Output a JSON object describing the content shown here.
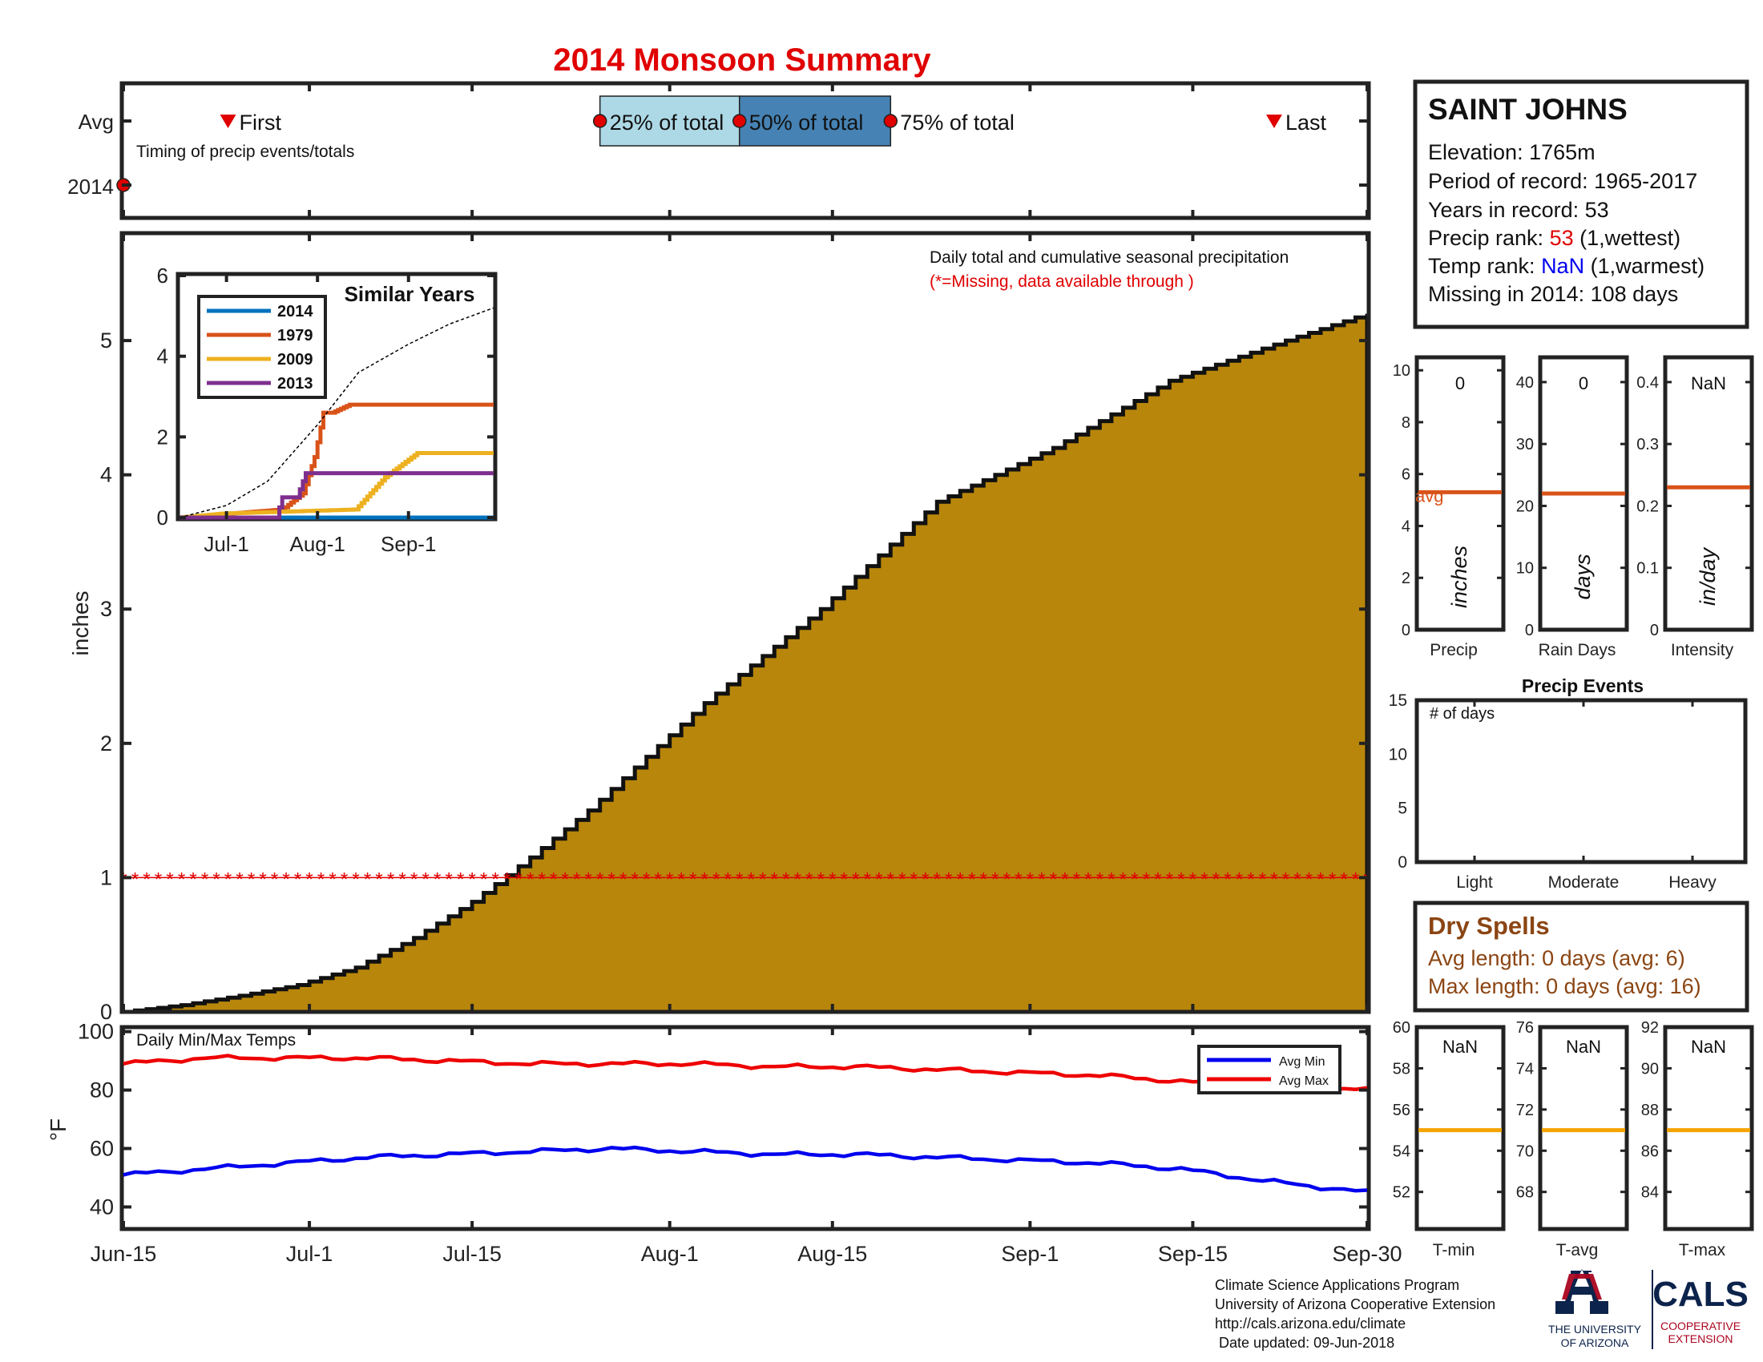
{
  "title": "2014 Monsoon Summary",
  "timing": {
    "row_labels": [
      "Avg",
      "2014"
    ],
    "caption": "Timing of precip events/totals",
    "first_label": "First",
    "last_label": "Last",
    "p25_label": "25% of total",
    "p50_label": "50% of total",
    "p75_label": "75% of total",
    "first_date": "2014-06-24",
    "p25_date": "2014-07-26",
    "p50_date": "2014-08-07",
    "p75_date": "2014-08-20",
    "last_date": "2014-09-22",
    "year_marker_date": "2014-06-15",
    "colors": {
      "q1_box": "#add8e6",
      "q2_box": "#4682b4",
      "dot": "#e00000",
      "tri": "#e00000"
    }
  },
  "main": {
    "annotation": "Daily total and cumulative seasonal precipitation",
    "missing_note": "(*=Missing, data available through )",
    "ylabel": "inches",
    "missing_marker_value": 1,
    "fill_color": "#b8860b"
  },
  "similar": {
    "title": "Similar Years",
    "x_ticks": [
      "Jul-1",
      "Aug-1",
      "Sep-1"
    ]
  },
  "temps": {
    "label": "Daily Min/Max Temps",
    "ylabel": "°F",
    "legend_min": "Avg Min",
    "legend_max": "Avg Max"
  },
  "x_ticks": [
    "Jun-15",
    "Jul-1",
    "Jul-15",
    "Aug-1",
    "Aug-15",
    "Sep-1",
    "Sep-15",
    "Sep-30"
  ],
  "station": {
    "name": "SAINT JOHNS",
    "elevation": "Elevation: 1765m",
    "period": "Period of record: 1965-2017",
    "years": "Years in record: 53",
    "precip_rank_prefix": "Precip rank: ",
    "precip_rank_value": "53",
    "precip_rank_suffix": " (1,wettest)",
    "temp_rank_prefix": "Temp rank: ",
    "temp_rank_value": "NaN",
    "temp_rank_suffix": " (1,warmest)",
    "missing": "Missing in 2014: 108 days"
  },
  "mini_bars": [
    {
      "value_label": "0",
      "unit": "inches",
      "xlabel": "Precip",
      "avg_label": "avg",
      "ticks": [
        "0",
        "2",
        "4",
        "6",
        "8",
        "10"
      ]
    },
    {
      "value_label": "0",
      "unit": "days",
      "xlabel": "Rain Days",
      "ticks": [
        "0",
        "10",
        "20",
        "30",
        "40"
      ]
    },
    {
      "value_label": "NaN",
      "unit": "in/day",
      "xlabel": "Intensity",
      "ticks": [
        "0",
        "0.1",
        "0.2",
        "0.3",
        "0.4"
      ]
    }
  ],
  "events": {
    "title": "Precip Events",
    "label": "# of days",
    "categories": [
      "Light",
      "Moderate",
      "Heavy"
    ],
    "ticks": [
      "0",
      "5",
      "10",
      "15"
    ]
  },
  "dry_spells": {
    "title": "Dry Spells",
    "avg_length": "Avg length: 0 days (avg: 6)",
    "max_length": "Max length: 0 days (avg: 16)"
  },
  "mini_temps": [
    {
      "value_label": "NaN",
      "xlabel": "T-min",
      "ticks": [
        "52",
        "54",
        "56",
        "58",
        "60"
      ]
    },
    {
      "value_label": "NaN",
      "xlabel": "T-avg",
      "ticks": [
        "68",
        "70",
        "72",
        "74",
        "76"
      ]
    },
    {
      "value_label": "NaN",
      "xlabel": "T-max",
      "ticks": [
        "84",
        "86",
        "88",
        "90",
        "92"
      ]
    }
  ],
  "footer": {
    "line1": "Climate Science Applications Program",
    "line2": "University of Arizona Cooperative Extension",
    "line3": "http://cals.arizona.edu/climate",
    "line4": " Date updated: 09-Jun-2018",
    "ua_line1": "THE UNIVERSITY",
    "ua_line2": "OF ARIZONA",
    "cals": "CALS",
    "cals_line1": "COOPERATIVE",
    "cals_line2": "EXTENSION"
  },
  "chart_data": [
    {
      "type": "area",
      "title": "Daily total and cumulative seasonal precipitation",
      "ylabel": "inches",
      "x_range": [
        "2014-06-15",
        "2014-09-30"
      ],
      "ylim": [
        0,
        5.8
      ],
      "y_ticks": [
        0,
        1,
        2,
        3,
        4,
        5
      ],
      "x_tick_labels": [
        "Jun-15",
        "Jul-1",
        "Jul-15",
        "Aug-1",
        "Aug-15",
        "Sep-1",
        "Sep-15",
        "Sep-30"
      ],
      "series": [
        {
          "x": [
            "2014-06-15",
            "2014-06-20",
            "2014-06-25",
            "2014-06-30",
            "2014-07-05",
            "2014-07-10",
            "2014-07-15",
            "2014-07-20",
            "2014-07-25",
            "2014-07-30",
            "2014-08-04",
            "2014-08-09",
            "2014-08-14",
            "2014-08-19",
            "2014-08-24",
            "2014-08-29",
            "2014-09-03",
            "2014-09-08",
            "2014-09-13",
            "2014-09-18",
            "2014-09-23",
            "2014-09-30"
          ],
          "values": [
            0.0,
            0.05,
            0.12,
            0.2,
            0.33,
            0.55,
            0.82,
            1.15,
            1.5,
            1.9,
            2.3,
            2.65,
            3.0,
            3.4,
            3.8,
            4.0,
            4.2,
            4.45,
            4.7,
            4.85,
            5.0,
            5.2
          ]
        }
      ],
      "missing_marker": {
        "value": 1,
        "symbol": "*"
      },
      "grid": false
    },
    {
      "type": "line",
      "title": "Similar Years",
      "x_tick_labels": [
        "Jul-1",
        "Aug-1",
        "Sep-1"
      ],
      "x_range": [
        "2014-06-15",
        "2014-09-30"
      ],
      "ylim": [
        0,
        6
      ],
      "y_ticks": [
        0,
        2,
        4,
        6
      ],
      "legend": "top-left",
      "series": [
        {
          "name": "2014",
          "color": "#0072bd",
          "x": [
            "2014-06-15",
            "2014-09-30"
          ],
          "values": [
            0,
            0
          ]
        },
        {
          "name": "1979",
          "color": "#d95319",
          "x": [
            "2014-06-15",
            "2014-07-20",
            "2014-07-27",
            "2014-07-31",
            "2014-08-03",
            "2014-08-06",
            "2014-08-12",
            "2014-09-30"
          ],
          "values": [
            0,
            0.2,
            0.6,
            1.5,
            2.6,
            2.6,
            2.8,
            2.8
          ]
        },
        {
          "name": "2009",
          "color": "#edb120",
          "x": [
            "2014-06-15",
            "2014-06-30",
            "2014-08-14",
            "2014-08-24",
            "2014-09-04",
            "2014-09-10",
            "2014-09-30"
          ],
          "values": [
            0,
            0.1,
            0.2,
            1.0,
            1.6,
            1.6,
            1.6
          ]
        },
        {
          "name": "2013",
          "color": "#7e2f8e",
          "x": [
            "2014-06-15",
            "2014-07-18",
            "2014-07-20",
            "2014-07-25",
            "2014-07-28",
            "2014-09-30"
          ],
          "values": [
            0,
            0,
            0.5,
            0.5,
            1.1,
            1.1
          ]
        },
        {
          "name": "",
          "color": "#000000",
          "dashed": true,
          "x": [
            "2014-06-15",
            "2014-07-01",
            "2014-07-15",
            "2014-08-01",
            "2014-08-15",
            "2014-09-01",
            "2014-09-15",
            "2014-09-30"
          ],
          "values": [
            0,
            0.3,
            0.9,
            2.3,
            3.6,
            4.3,
            4.8,
            5.2
          ]
        }
      ]
    },
    {
      "type": "line",
      "title": "Daily Min/Max Temps",
      "ylabel": "°F",
      "ylim": [
        33,
        101
      ],
      "y_ticks": [
        40,
        60,
        80,
        100
      ],
      "x_range": [
        "2014-06-15",
        "2014-09-30"
      ],
      "legend": "top-right",
      "series": [
        {
          "name": "Avg Min",
          "color": "#0000ee",
          "x": [
            "2014-06-15",
            "2014-06-22",
            "2014-06-29",
            "2014-07-06",
            "2014-07-13",
            "2014-07-20",
            "2014-07-27",
            "2014-08-03",
            "2014-08-10",
            "2014-08-17",
            "2014-08-24",
            "2014-08-31",
            "2014-09-07",
            "2014-09-14",
            "2014-09-21",
            "2014-09-30"
          ],
          "values": [
            51,
            53,
            55,
            57,
            58,
            59,
            60,
            59,
            58,
            58,
            57,
            56,
            55,
            53,
            49,
            45
          ]
        },
        {
          "name": "Avg Max",
          "color": "#ee0000",
          "x": [
            "2014-06-15",
            "2014-06-22",
            "2014-06-29",
            "2014-07-06",
            "2014-07-13",
            "2014-07-20",
            "2014-07-27",
            "2014-08-03",
            "2014-08-10",
            "2014-08-17",
            "2014-08-24",
            "2014-08-31",
            "2014-09-07",
            "2014-09-14",
            "2014-09-21",
            "2014-09-30"
          ],
          "values": [
            89,
            91,
            91,
            91,
            90,
            89,
            89,
            89,
            88,
            88,
            87,
            86,
            85,
            83,
            81,
            80
          ]
        }
      ]
    },
    {
      "type": "bar",
      "title": "Precip",
      "categories": [
        "Precip",
        "Rain Days",
        "Intensity"
      ],
      "values": [
        0,
        0,
        null
      ],
      "averages": [
        5.3,
        22,
        0.23
      ],
      "units": [
        "inches",
        "days",
        "in/day"
      ],
      "ylims": [
        [
          0,
          10.5
        ],
        [
          0,
          44
        ],
        [
          0,
          0.44
        ]
      ]
    },
    {
      "type": "bar",
      "title": "Precip Events",
      "categories": [
        "Light",
        "Moderate",
        "Heavy"
      ],
      "values": [
        0,
        0,
        0
      ],
      "ylim": [
        0,
        15
      ],
      "ylabel": "# of days"
    },
    {
      "type": "bar",
      "categories": [
        "T-min",
        "T-avg",
        "T-max"
      ],
      "values": [
        null,
        null,
        null
      ],
      "averages": [
        55,
        71,
        87
      ],
      "ylims": [
        [
          50.2,
          60
        ],
        [
          66.2,
          76
        ],
        [
          82.2,
          92
        ]
      ]
    }
  ]
}
